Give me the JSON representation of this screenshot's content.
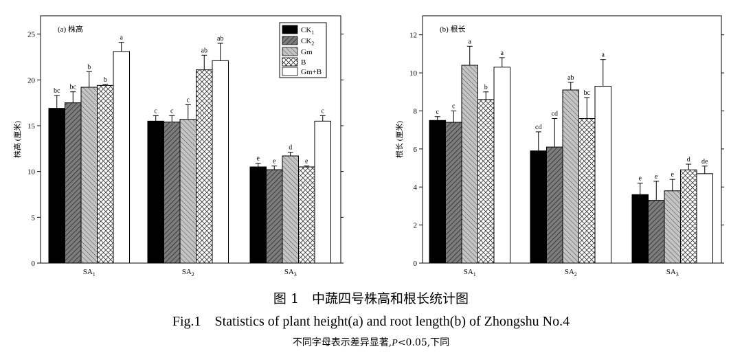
{
  "legend": {
    "items": [
      {
        "label": "CK",
        "sub": "1",
        "pattern": "solid-black"
      },
      {
        "label": "CK",
        "sub": "2",
        "pattern": "dark-hatch"
      },
      {
        "label": "Gm",
        "sub": "",
        "pattern": "light-hatch"
      },
      {
        "label": "B",
        "sub": "",
        "pattern": "crosshatch"
      },
      {
        "label": "Gm+B",
        "sub": "",
        "pattern": "white"
      }
    ]
  },
  "captions": {
    "cn_title": "图 1　中蔬四号株高和根长统计图",
    "en_title": "Fig.1　Statistics of plant height(a) and root length(b) of Zhongshu No.4",
    "note_pre": "不同字母表示差异显著,",
    "note_p": "P",
    "note_post": "<0.05,下同"
  },
  "chart_data": [
    {
      "type": "bar",
      "panel_label": "(a) 株高",
      "title": "",
      "xlabel": "",
      "ylabel": "株高 (厘米)",
      "ylim": [
        0,
        27
      ],
      "yticks": [
        0,
        5,
        10,
        15,
        20,
        25
      ],
      "categories": [
        {
          "base": "SA",
          "sub": "1"
        },
        {
          "base": "SA",
          "sub": "2"
        },
        {
          "base": "SA",
          "sub": "3"
        }
      ],
      "series": [
        {
          "name": "CK1",
          "values": [
            16.9,
            15.5,
            10.5
          ],
          "errors": [
            1.4,
            0.6,
            0.4
          ],
          "letters": [
            "bc",
            "c",
            "e"
          ]
        },
        {
          "name": "CK2",
          "values": [
            17.5,
            15.4,
            10.2
          ],
          "errors": [
            1.2,
            0.7,
            0.4
          ],
          "letters": [
            "bc",
            "c",
            "e"
          ]
        },
        {
          "name": "Gm",
          "values": [
            19.2,
            15.7,
            11.7
          ],
          "errors": [
            1.7,
            1.6,
            0.4
          ],
          "letters": [
            "b",
            "c",
            "d"
          ]
        },
        {
          "name": "B",
          "values": [
            19.4,
            21.1,
            10.5
          ],
          "errors": [
            0.1,
            1.6,
            0.1
          ],
          "letters": [
            "b",
            "ab",
            "e"
          ]
        },
        {
          "name": "Gm+B",
          "values": [
            23.1,
            22.1,
            15.5
          ],
          "errors": [
            1.0,
            1.9,
            0.6
          ],
          "letters": [
            "a",
            "ab",
            "c"
          ]
        }
      ]
    },
    {
      "type": "bar",
      "panel_label": "(b) 根长",
      "title": "",
      "xlabel": "",
      "ylabel": "根长 (厘米)",
      "ylim": [
        0,
        13
      ],
      "yticks": [
        0,
        2,
        4,
        6,
        8,
        10,
        12
      ],
      "categories": [
        {
          "base": "SA",
          "sub": "1"
        },
        {
          "base": "SA",
          "sub": "2"
        },
        {
          "base": "SA",
          "sub": "3"
        }
      ],
      "series": [
        {
          "name": "CK1",
          "values": [
            7.5,
            5.9,
            3.6
          ],
          "errors": [
            0.2,
            1.0,
            0.6
          ],
          "letters": [
            "c",
            "cd",
            "e"
          ]
        },
        {
          "name": "CK2",
          "values": [
            7.4,
            6.1,
            3.3
          ],
          "errors": [
            0.6,
            1.5,
            1.0
          ],
          "letters": [
            "c",
            "cd",
            "e"
          ]
        },
        {
          "name": "Gm",
          "values": [
            10.4,
            9.1,
            3.8
          ],
          "errors": [
            1.0,
            0.4,
            0.6
          ],
          "letters": [
            "a",
            "ab",
            "e"
          ]
        },
        {
          "name": "B",
          "values": [
            8.6,
            7.6,
            4.9
          ],
          "errors": [
            0.4,
            1.1,
            0.3
          ],
          "letters": [
            "b",
            "bc",
            "d"
          ]
        },
        {
          "name": "Gm+B",
          "values": [
            10.3,
            9.3,
            4.7
          ],
          "errors": [
            0.5,
            1.4,
            0.4
          ],
          "letters": [
            "a",
            "a",
            "de"
          ]
        }
      ]
    }
  ]
}
